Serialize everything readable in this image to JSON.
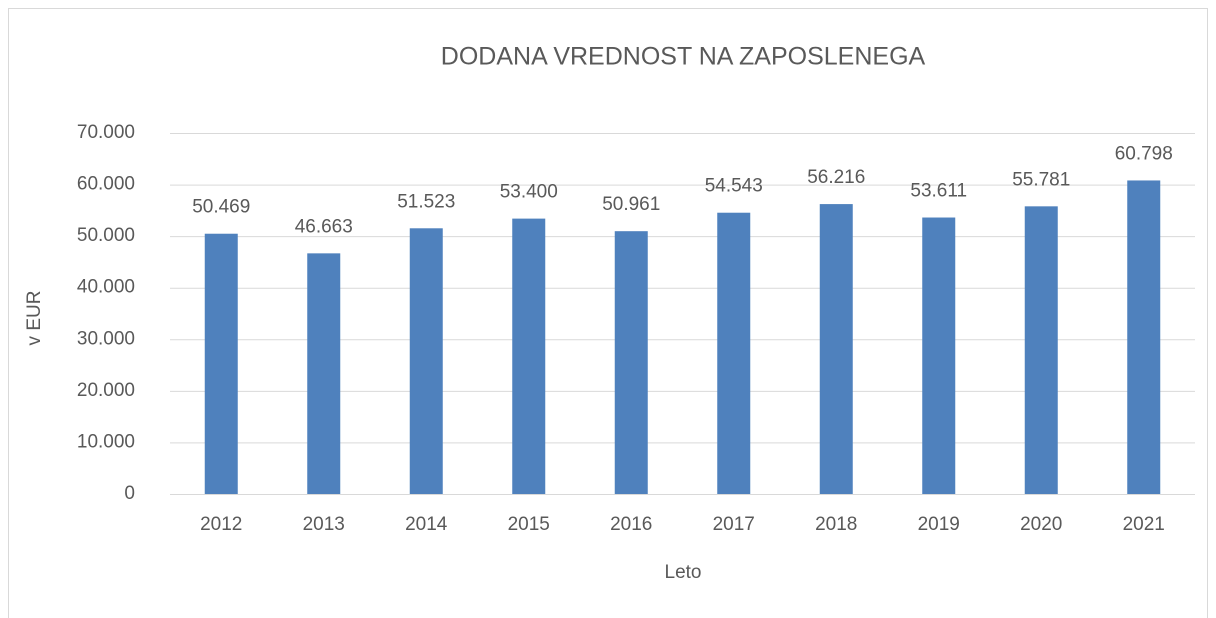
{
  "chart_data": {
    "type": "bar",
    "title": "DODANA VREDNOST NA ZAPOSLENEGA",
    "x_label": "Leto",
    "y_label": "v EUR",
    "categories": [
      "2012",
      "2013",
      "2014",
      "2015",
      "2016",
      "2017",
      "2018",
      "2019",
      "2020",
      "2021"
    ],
    "values": [
      50469,
      46663,
      51523,
      53400,
      50961,
      54543,
      56216,
      53611,
      55781,
      60798
    ],
    "value_labels": [
      "50.469",
      "46.663",
      "51.523",
      "53.400",
      "50.961",
      "54.543",
      "56.216",
      "53.611",
      "55.781",
      "60.798"
    ],
    "color": "#4f81bd",
    "ylim": [
      0,
      70000
    ],
    "yticks": [
      0,
      {
        "value": 10000,
        "label": "10.000"
      },
      {
        "value": 20000,
        "label": "20.000"
      },
      {
        "value": 30000,
        "label": "30.000"
      },
      {
        "value": 40000,
        "label": "40.000"
      },
      {
        "value": 50000,
        "label": "50.000"
      },
      {
        "value": 60000,
        "label": "60.000"
      },
      {
        "value": 70000,
        "label": "70.000"
      }
    ],
    "grid": true
  }
}
